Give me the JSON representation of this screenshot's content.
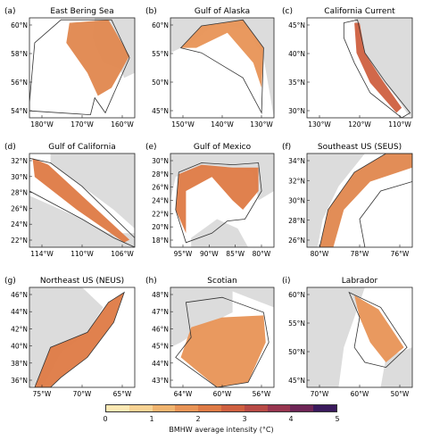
{
  "panels": [
    {
      "letter": "(a)",
      "title": "East Bering Sea",
      "ylabels": [
        "60°N",
        "58°N",
        "56°N",
        "54°N"
      ],
      "xlabels": [
        "180°W",
        "170°W",
        "160°W"
      ]
    },
    {
      "letter": "(b)",
      "title": "Gulf of Alaska",
      "ylabels": [
        "60°N",
        "55°N",
        "50°N",
        "45°N"
      ],
      "xlabels": [
        "150°W",
        "140°W",
        "130°W"
      ]
    },
    {
      "letter": "(c)",
      "title": "California Current",
      "ylabels": [
        "45°N",
        "40°N",
        "35°N",
        "30°N"
      ],
      "xlabels": [
        "130°W",
        "120°W",
        "110°W"
      ]
    },
    {
      "letter": "(d)",
      "title": "Gulf of California",
      "ylabels": [
        "32°N",
        "30°N",
        "28°N",
        "26°N",
        "24°N",
        "22°N"
      ],
      "xlabels": [
        "114°W",
        "110°W",
        "106°W"
      ]
    },
    {
      "letter": "(e)",
      "title": "Gulf of Mexico",
      "ylabels": [
        "30°N",
        "28°N",
        "26°N",
        "24°N",
        "22°N",
        "20°N",
        "18°N"
      ],
      "xlabels": [
        "95°W",
        "90°W",
        "85°W",
        "80°W"
      ]
    },
    {
      "letter": "(f)",
      "title": "Southeast US (SEUS)",
      "ylabels": [
        "34°N",
        "32°N",
        "30°N",
        "28°N",
        "26°N"
      ],
      "xlabels": [
        "80°W",
        "78°W",
        "76°W"
      ]
    },
    {
      "letter": "(g)",
      "title": "Northeast US (NEUS)",
      "ylabels": [
        "46°N",
        "44°N",
        "42°N",
        "40°N",
        "38°N",
        "36°N"
      ],
      "xlabels": [
        "75°W",
        "70°W",
        "65°W"
      ]
    },
    {
      "letter": "(h)",
      "title": "Scotian",
      "ylabels": [
        "48°N",
        "47°N",
        "46°N",
        "45°N",
        "44°N",
        "43°N"
      ],
      "xlabels": [
        "64°W",
        "60°W",
        "56°W"
      ]
    },
    {
      "letter": "(i)",
      "title": "Labrador",
      "ylabels": [
        "60°N",
        "55°N",
        "50°N",
        "45°N"
      ],
      "xlabels": [
        "70°W",
        "60°W",
        "50°W"
      ]
    }
  ],
  "colorbar": {
    "label": "BMHW average intensity (°C)",
    "ticks": [
      "0",
      "1",
      "2",
      "3",
      "4",
      "5"
    ],
    "colors": [
      "#fce9b4",
      "#f8d394",
      "#f0b46f",
      "#e89456",
      "#de7a45",
      "#cf6040",
      "#b84a45",
      "#98354f",
      "#6e2556",
      "#3a1a5c"
    ]
  },
  "colors": {
    "land": "#dcdcdc",
    "ocean": "#ffffff",
    "outline": "#333333"
  }
}
